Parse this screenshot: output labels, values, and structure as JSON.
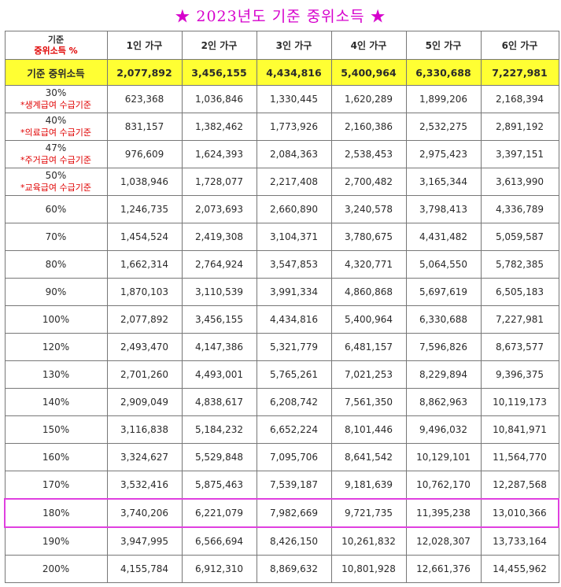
{
  "title": "★ 2023년도 기준 중위소득 ★",
  "header": {
    "corner_top": "기준",
    "corner_bottom": "중위소득 %",
    "columns": [
      "1인 가구",
      "2인 가구",
      "3인 가구",
      "4인 가구",
      "5인 가구",
      "6인 가구"
    ]
  },
  "median_row": {
    "label": "기준 중위소득",
    "values": [
      "2,077,892",
      "3,456,155",
      "4,434,816",
      "5,400,964",
      "6,330,688",
      "7,227,981"
    ]
  },
  "rows": [
    {
      "pct": "30%",
      "note": "*생계급여 수급기준",
      "values": [
        "623,368",
        "1,036,846",
        "1,330,445",
        "1,620,289",
        "1,899,206",
        "2,168,394"
      ]
    },
    {
      "pct": "40%",
      "note": "*의료급여 수급기준",
      "values": [
        "831,157",
        "1,382,462",
        "1,773,926",
        "2,160,386",
        "2,532,275",
        "2,891,192"
      ]
    },
    {
      "pct": "47%",
      "note": "*주거급여 수급기준",
      "values": [
        "976,609",
        "1,624,393",
        "2,084,363",
        "2,538,453",
        "2,975,423",
        "3,397,151"
      ]
    },
    {
      "pct": "50%",
      "note": "*교육급여 수급기준",
      "values": [
        "1,038,946",
        "1,728,077",
        "2,217,408",
        "2,700,482",
        "3,165,344",
        "3,613,990"
      ]
    },
    {
      "pct": "60%",
      "note": "",
      "values": [
        "1,246,735",
        "2,073,693",
        "2,660,890",
        "3,240,578",
        "3,798,413",
        "4,336,789"
      ]
    },
    {
      "pct": "70%",
      "note": "",
      "values": [
        "1,454,524",
        "2,419,308",
        "3,104,371",
        "3,780,675",
        "4,431,482",
        "5,059,587"
      ]
    },
    {
      "pct": "80%",
      "note": "",
      "values": [
        "1,662,314",
        "2,764,924",
        "3,547,853",
        "4,320,771",
        "5,064,550",
        "5,782,385"
      ]
    },
    {
      "pct": "90%",
      "note": "",
      "values": [
        "1,870,103",
        "3,110,539",
        "3,991,334",
        "4,860,868",
        "5,697,619",
        "6,505,183"
      ]
    },
    {
      "pct": "100%",
      "note": "",
      "values": [
        "2,077,892",
        "3,456,155",
        "4,434,816",
        "5,400,964",
        "6,330,688",
        "7,227,981"
      ]
    },
    {
      "pct": "120%",
      "note": "",
      "values": [
        "2,493,470",
        "4,147,386",
        "5,321,779",
        "6,481,157",
        "7,596,826",
        "8,673,577"
      ]
    },
    {
      "pct": "130%",
      "note": "",
      "values": [
        "2,701,260",
        "4,493,001",
        "5,765,261",
        "7,021,253",
        "8,229,894",
        "9,396,375"
      ]
    },
    {
      "pct": "140%",
      "note": "",
      "values": [
        "2,909,049",
        "4,838,617",
        "6,208,742",
        "7,561,350",
        "8,862,963",
        "10,119,173"
      ]
    },
    {
      "pct": "150%",
      "note": "",
      "values": [
        "3,116,838",
        "5,184,232",
        "6,652,224",
        "8,101,446",
        "9,496,032",
        "10,841,971"
      ]
    },
    {
      "pct": "160%",
      "note": "",
      "values": [
        "3,324,627",
        "5,529,848",
        "7,095,706",
        "8,641,542",
        "10,129,101",
        "11,564,770"
      ]
    },
    {
      "pct": "170%",
      "note": "",
      "values": [
        "3,532,416",
        "5,875,463",
        "7,539,187",
        "9,181,639",
        "10,762,170",
        "12,287,568"
      ]
    },
    {
      "pct": "180%",
      "note": "",
      "highlighted": true,
      "values": [
        "3,740,206",
        "6,221,079",
        "7,982,669",
        "9,721,735",
        "11,395,238",
        "13,010,366"
      ]
    },
    {
      "pct": "190%",
      "note": "",
      "values": [
        "3,947,995",
        "6,566,694",
        "8,426,150",
        "10,261,832",
        "12,028,307",
        "13,733,164"
      ]
    },
    {
      "pct": "200%",
      "note": "",
      "values": [
        "4,155,784",
        "6,912,310",
        "8,869,632",
        "10,801,928",
        "12,661,376",
        "14,455,962"
      ]
    }
  ],
  "colors": {
    "title": "#d600cc",
    "median_bg": "#ffff33",
    "note_red": "#e00000",
    "highlight_border": "#e040e0"
  }
}
